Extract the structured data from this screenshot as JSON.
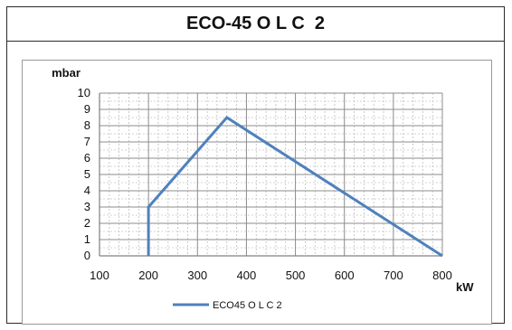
{
  "title": "ECO-45 O L C  2",
  "chart_data": {
    "type": "line",
    "ylabel": "mbar",
    "xlabel": "kW",
    "xlim": [
      100,
      800
    ],
    "ylim": [
      0,
      10
    ],
    "x_ticks": [
      100,
      200,
      300,
      400,
      500,
      600,
      700,
      800
    ],
    "y_ticks": [
      0,
      1,
      2,
      3,
      4,
      5,
      6,
      7,
      8,
      9,
      10
    ],
    "grid": true,
    "legend_position": "bottom",
    "series": [
      {
        "name": "ECO45 O L C 2",
        "color": "#4f81bd",
        "points": [
          {
            "x": 200,
            "y": 0
          },
          {
            "x": 200,
            "y": 3
          },
          {
            "x": 360,
            "y": 8.5
          },
          {
            "x": 800,
            "y": 0
          }
        ]
      }
    ]
  }
}
